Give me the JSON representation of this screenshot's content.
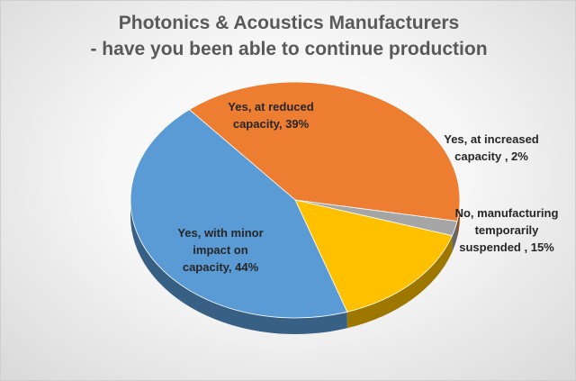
{
  "chart_data": {
    "type": "pie",
    "title_lines": [
      "Photonics & Acoustics Manufacturers",
      "- have you been able to continue production"
    ],
    "slices": [
      {
        "label_lines": [
          "Yes, at reduced",
          "capacity, 39%"
        ],
        "value": 39,
        "color": "#ED7D31"
      },
      {
        "label_lines": [
          "Yes, at increased",
          "capacity , 2%"
        ],
        "value": 2,
        "color": "#A5A5A5"
      },
      {
        "label_lines": [
          "No, manufacturing",
          "temporarily",
          "suspended , 15%"
        ],
        "value": 15,
        "color": "#FFC000"
      },
      {
        "label_lines": [
          "Yes, with minor",
          "impact on",
          "capacity, 44%"
        ],
        "value": 44,
        "color": "#5B9BD5"
      }
    ]
  }
}
